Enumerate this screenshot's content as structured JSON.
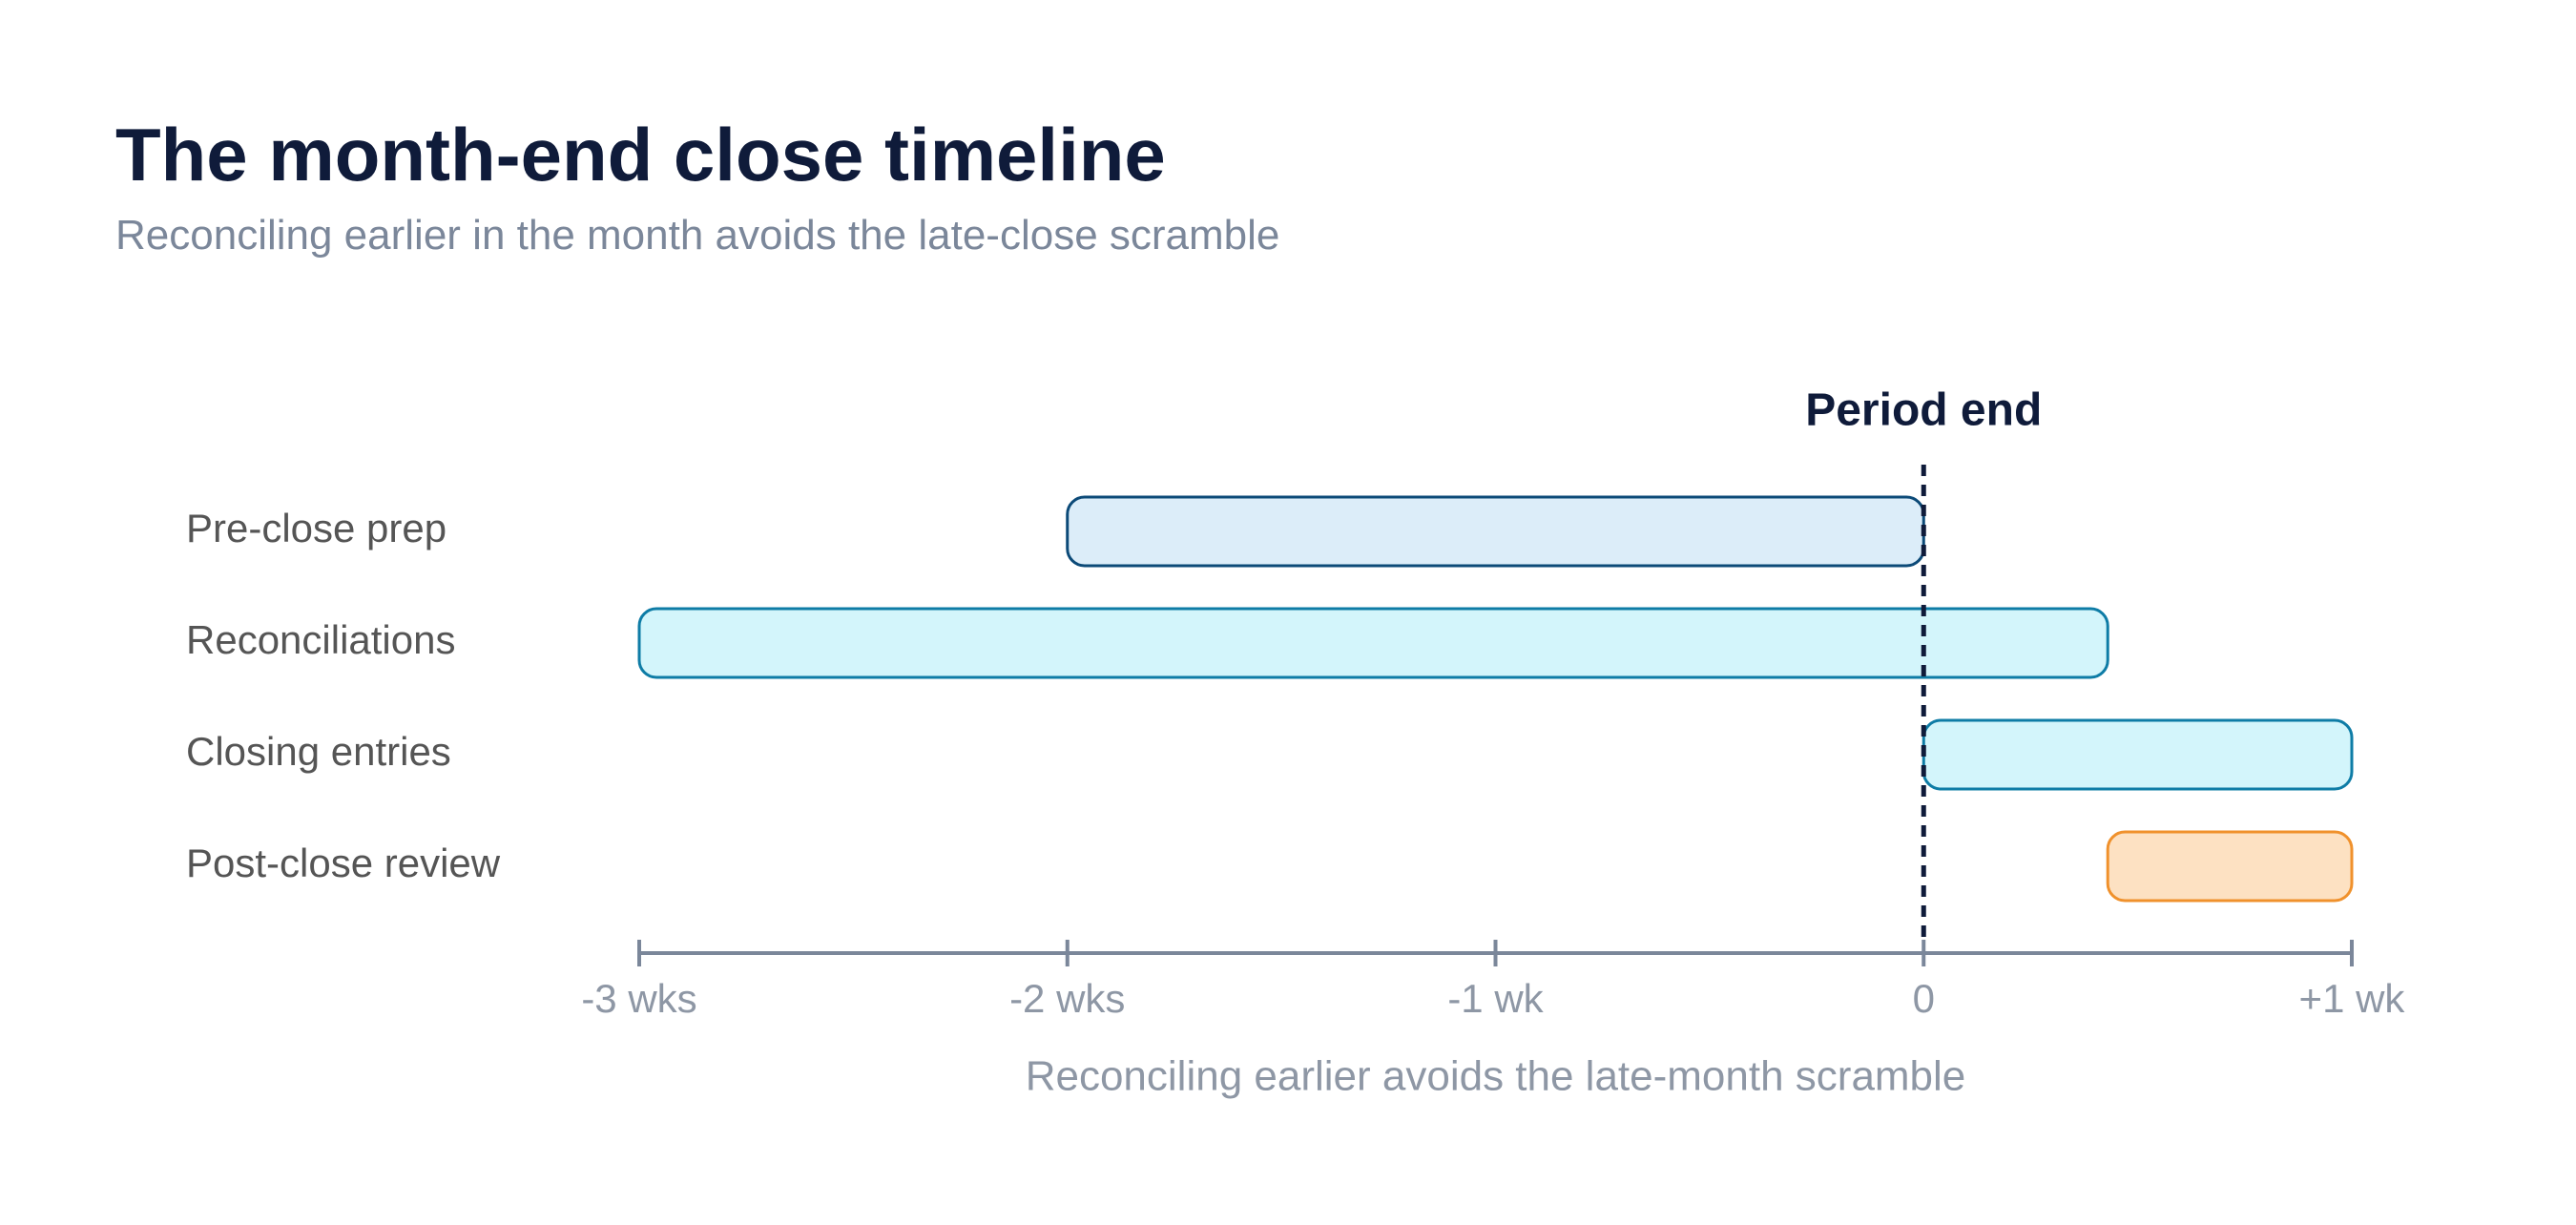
{
  "title": "The month-end close timeline",
  "subtitle": "Reconciling earlier in the month avoids the late-close scramble",
  "chart_data": {
    "type": "bar",
    "orientation": "horizontal-range",
    "xlabel": "Reconciling earlier avoids the late-month scramble",
    "xlim": [
      -3,
      1
    ],
    "x_unit": "weeks relative to period end",
    "ticks": [
      {
        "value": -3,
        "label": "-3 wks"
      },
      {
        "value": -2,
        "label": "-2 wks"
      },
      {
        "value": -1,
        "label": "-1 wk"
      },
      {
        "value": 0,
        "label": "0"
      },
      {
        "value": 1,
        "label": "+1 wk"
      }
    ],
    "reference_line": {
      "value": 0,
      "label": "Period end",
      "style": "dashed"
    },
    "tasks": [
      {
        "label": "Pre-close prep",
        "start": -2,
        "end": 0,
        "fill": "#dcedf9",
        "stroke": "#0c4a78"
      },
      {
        "label": "Reconciliations",
        "start": -3,
        "end": 0.43,
        "fill": "#d3f5fb",
        "stroke": "#0e7ca6"
      },
      {
        "label": "Closing entries",
        "start": 0,
        "end": 1,
        "fill": "#d3f5fb",
        "stroke": "#0e7ca6"
      },
      {
        "label": "Post-close review",
        "start": 0.43,
        "end": 1,
        "fill": "#fde1c2",
        "stroke": "#f0912c"
      }
    ],
    "colors": {
      "axis": "#7b879a",
      "tick_label": "#8e97a5",
      "row_label": "#555555",
      "reference_line": "#0f1b3a"
    },
    "grid": false,
    "legend": "none"
  }
}
